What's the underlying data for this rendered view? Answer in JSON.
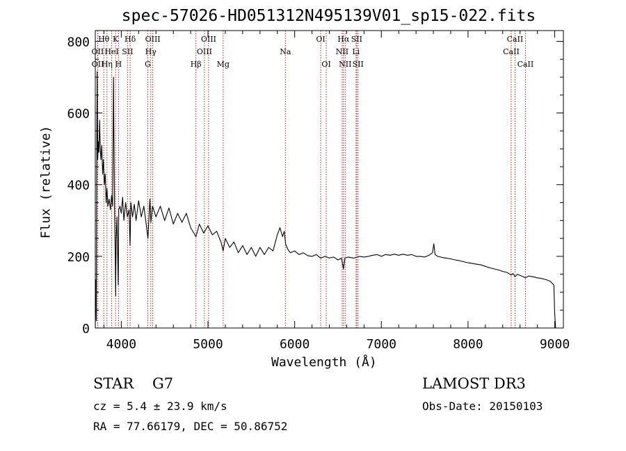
{
  "title": "spec-57026-HD051312N495139V01_sp15-022.fits",
  "info": {
    "object_class": "STAR",
    "subclass": "G7",
    "cz": "cz = 5.4 ± 23.9 km/s",
    "radec": "RA =  77.66179, DEC =  50.86752",
    "survey": "LAMOST DR3",
    "obs_date": "Obs-Date: 20150103"
  },
  "chart_data": {
    "type": "line",
    "title": "spec-57026-HD051312N495139V01_sp15-022.fits",
    "xlabel": "Wavelength (Å)",
    "ylabel": "Flux (relative)",
    "xlim": [
      3700,
      9100
    ],
    "ylim": [
      0,
      830
    ],
    "x_ticks": [
      4000,
      5000,
      6000,
      7000,
      8000,
      9000
    ],
    "y_ticks": [
      0,
      200,
      400,
      600,
      800
    ],
    "colors": {
      "spectrum": "#000000",
      "lines": "#b22222",
      "axes": "#000000"
    },
    "series": [
      {
        "name": "flux",
        "points": [
          [
            3700,
            0
          ],
          [
            3705,
            135
          ],
          [
            3712,
            20
          ],
          [
            3718,
            540
          ],
          [
            3722,
            715
          ],
          [
            3728,
            470
          ],
          [
            3735,
            520
          ],
          [
            3742,
            490
          ],
          [
            3750,
            580
          ],
          [
            3758,
            500
          ],
          [
            3765,
            470
          ],
          [
            3775,
            510
          ],
          [
            3785,
            430
          ],
          [
            3795,
            470
          ],
          [
            3805,
            400
          ],
          [
            3815,
            430
          ],
          [
            3825,
            350
          ],
          [
            3835,
            390
          ],
          [
            3845,
            340
          ],
          [
            3860,
            360
          ],
          [
            3875,
            330
          ],
          [
            3888,
            370
          ],
          [
            3900,
            340
          ],
          [
            3910,
            700
          ],
          [
            3915,
            540
          ],
          [
            3922,
            340
          ],
          [
            3930,
            200
          ],
          [
            3935,
            90
          ],
          [
            3940,
            240
          ],
          [
            3950,
            310
          ],
          [
            3965,
            120
          ],
          [
            3970,
            330
          ],
          [
            3985,
            340
          ],
          [
            4000,
            320
          ],
          [
            4015,
            365
          ],
          [
            4030,
            300
          ],
          [
            4050,
            350
          ],
          [
            4070,
            310
          ],
          [
            4090,
            330
          ],
          [
            4101,
            230
          ],
          [
            4110,
            350
          ],
          [
            4130,
            310
          ],
          [
            4150,
            345
          ],
          [
            4170,
            300
          ],
          [
            4200,
            355
          ],
          [
            4230,
            310
          ],
          [
            4260,
            340
          ],
          [
            4290,
            285
          ],
          [
            4307,
            250
          ],
          [
            4330,
            360
          ],
          [
            4341,
            295
          ],
          [
            4360,
            340
          ],
          [
            4400,
            310
          ],
          [
            4450,
            340
          ],
          [
            4500,
            300
          ],
          [
            4550,
            335
          ],
          [
            4600,
            290
          ],
          [
            4650,
            320
          ],
          [
            4700,
            295
          ],
          [
            4750,
            320
          ],
          [
            4800,
            280
          ],
          [
            4861,
            255
          ],
          [
            4900,
            290
          ],
          [
            4950,
            265
          ],
          [
            5000,
            285
          ],
          [
            5050,
            260
          ],
          [
            5100,
            270
          ],
          [
            5150,
            240
          ],
          [
            5175,
            215
          ],
          [
            5200,
            250
          ],
          [
            5250,
            225
          ],
          [
            5300,
            240
          ],
          [
            5350,
            210
          ],
          [
            5400,
            230
          ],
          [
            5450,
            205
          ],
          [
            5500,
            225
          ],
          [
            5550,
            200
          ],
          [
            5600,
            225
          ],
          [
            5650,
            205
          ],
          [
            5700,
            225
          ],
          [
            5750,
            215
          ],
          [
            5800,
            260
          ],
          [
            5830,
            280
          ],
          [
            5860,
            255
          ],
          [
            5880,
            270
          ],
          [
            5895,
            235
          ],
          [
            5920,
            220
          ],
          [
            5950,
            210
          ],
          [
            6000,
            215
          ],
          [
            6050,
            205
          ],
          [
            6100,
            210
          ],
          [
            6150,
            202
          ],
          [
            6200,
            200
          ],
          [
            6250,
            205
          ],
          [
            6300,
            195
          ],
          [
            6350,
            200
          ],
          [
            6400,
            195
          ],
          [
            6450,
            198
          ],
          [
            6500,
            190
          ],
          [
            6540,
            195
          ],
          [
            6563,
            165
          ],
          [
            6580,
            195
          ],
          [
            6620,
            198
          ],
          [
            6680,
            195
          ],
          [
            6750,
            200
          ],
          [
            6800,
            198
          ],
          [
            6850,
            200
          ],
          [
            6900,
            203
          ],
          [
            6950,
            205
          ],
          [
            7000,
            200
          ],
          [
            7050,
            205
          ],
          [
            7100,
            203
          ],
          [
            7150,
            206
          ],
          [
            7200,
            203
          ],
          [
            7250,
            206
          ],
          [
            7300,
            203
          ],
          [
            7350,
            205
          ],
          [
            7400,
            200
          ],
          [
            7450,
            200
          ],
          [
            7500,
            198
          ],
          [
            7550,
            203
          ],
          [
            7590,
            210
          ],
          [
            7605,
            235
          ],
          [
            7620,
            205
          ],
          [
            7650,
            200
          ],
          [
            7700,
            197
          ],
          [
            7750,
            195
          ],
          [
            7800,
            193
          ],
          [
            7850,
            190
          ],
          [
            7900,
            188
          ],
          [
            7950,
            185
          ],
          [
            8000,
            182
          ],
          [
            8050,
            180
          ],
          [
            8100,
            178
          ],
          [
            8150,
            176
          ],
          [
            8200,
            172
          ],
          [
            8250,
            168
          ],
          [
            8300,
            165
          ],
          [
            8350,
            162
          ],
          [
            8400,
            158
          ],
          [
            8450,
            155
          ],
          [
            8498,
            148
          ],
          [
            8520,
            152
          ],
          [
            8542,
            143
          ],
          [
            8570,
            150
          ],
          [
            8600,
            147
          ],
          [
            8662,
            140
          ],
          [
            8700,
            145
          ],
          [
            8750,
            143
          ],
          [
            8800,
            140
          ],
          [
            8850,
            138
          ],
          [
            8900,
            135
          ],
          [
            8950,
            130
          ],
          [
            8990,
            120
          ],
          [
            9000,
            40
          ],
          [
            9010,
            0
          ]
        ]
      }
    ],
    "line_markers": [
      {
        "label": "Hθ",
        "wavelength": 3798,
        "row": 1
      },
      {
        "label": "OII",
        "wavelength": 3727,
        "row": 2
      },
      {
        "label": "OII",
        "wavelength": 3729,
        "row": 3
      },
      {
        "label": "K",
        "wavelength": 3934,
        "row": 1
      },
      {
        "label": "HeI",
        "wavelength": 3889,
        "row": 2
      },
      {
        "label": "Hη",
        "wavelength": 3835,
        "row": 3
      },
      {
        "label": "Hδ",
        "wavelength": 4102,
        "row": 1
      },
      {
        "label": "SII",
        "wavelength": 4072,
        "row": 2
      },
      {
        "label": "H",
        "wavelength": 3968,
        "row": 3
      },
      {
        "label": "OIII",
        "wavelength": 4363,
        "row": 1
      },
      {
        "label": "Hγ",
        "wavelength": 4340,
        "row": 2
      },
      {
        "label": "G",
        "wavelength": 4305,
        "row": 3
      },
      {
        "label": "OIII",
        "wavelength": 5007,
        "row": 1
      },
      {
        "label": "OIII",
        "wavelength": 4959,
        "row": 2
      },
      {
        "label": "Hβ",
        "wavelength": 4861,
        "row": 3
      },
      {
        "label": "Mg",
        "wavelength": 5175,
        "row": 3
      },
      {
        "label": "Na",
        "wavelength": 5893,
        "row": 2
      },
      {
        "label": "OI",
        "wavelength": 6300,
        "row": 1
      },
      {
        "label": "OI",
        "wavelength": 6364,
        "row": 3
      },
      {
        "label": "Hα",
        "wavelength": 6563,
        "row": 1
      },
      {
        "label": "NII",
        "wavelength": 6548,
        "row": 2
      },
      {
        "label": "NII",
        "wavelength": 6583,
        "row": 3
      },
      {
        "label": "SII",
        "wavelength": 6716,
        "row": 1
      },
      {
        "label": "Li",
        "wavelength": 6708,
        "row": 2
      },
      {
        "label": "SII",
        "wavelength": 6731,
        "row": 3
      },
      {
        "label": "CaII",
        "wavelength": 8542,
        "row": 1
      },
      {
        "label": "CaII",
        "wavelength": 8498,
        "row": 2
      },
      {
        "label": "CaII",
        "wavelength": 8662,
        "row": 3
      }
    ]
  }
}
